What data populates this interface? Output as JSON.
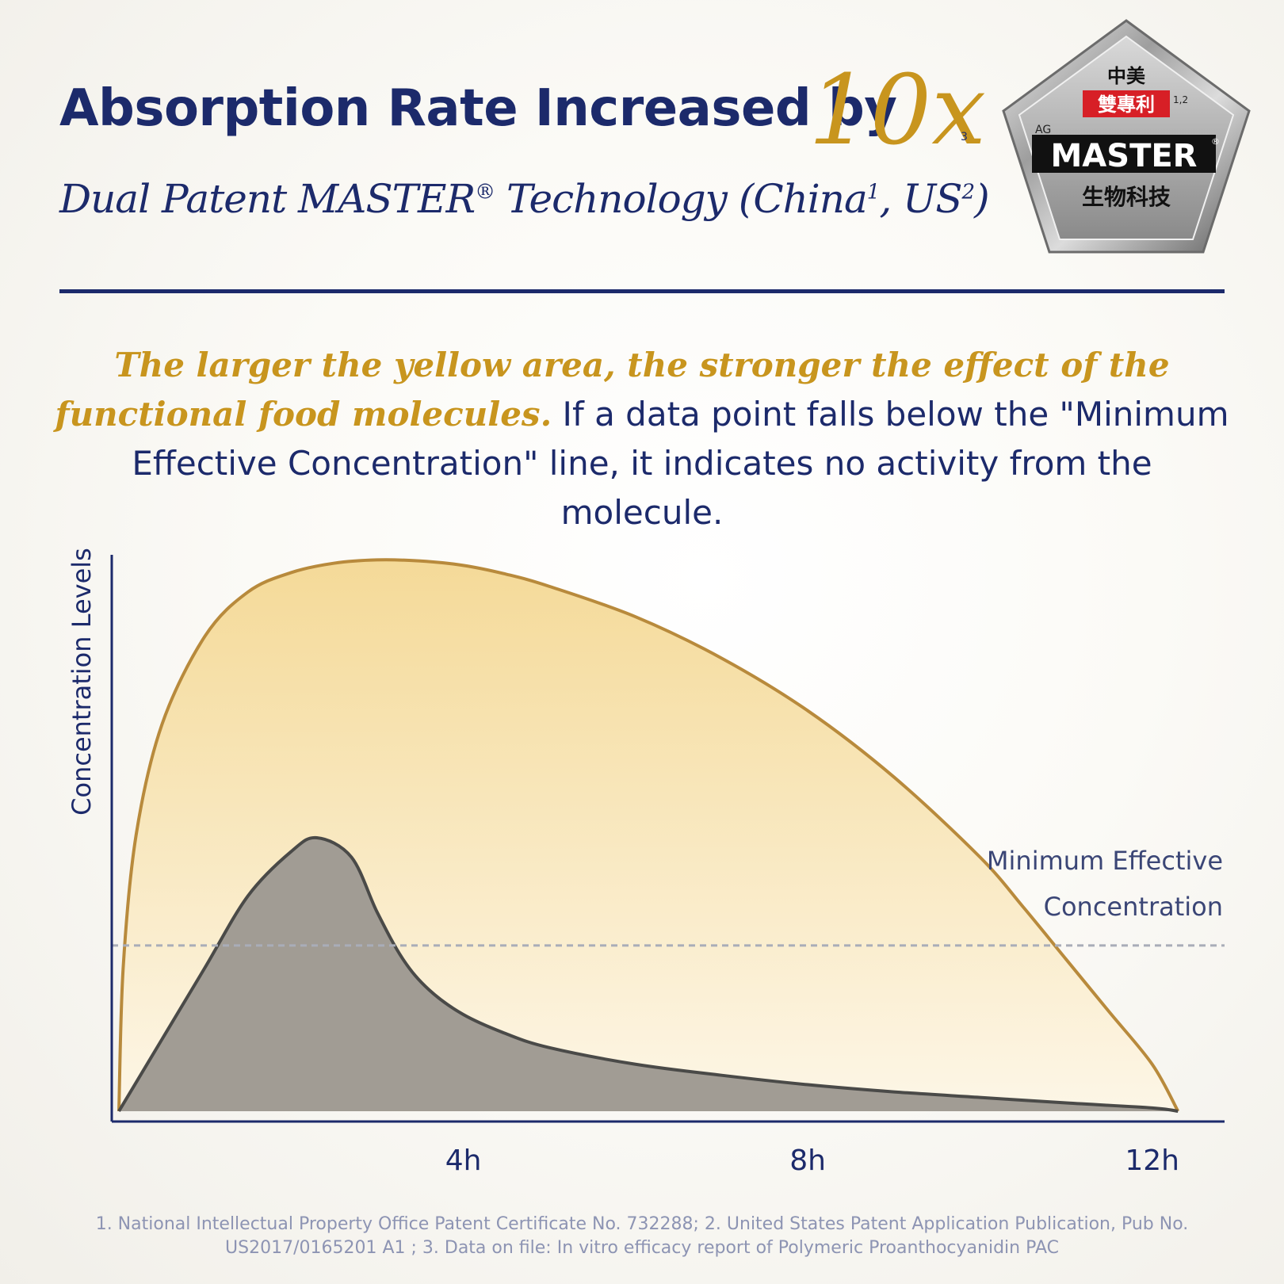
{
  "header": {
    "title": "Absorption Rate Increased by",
    "multiplier": "10x",
    "multiplier_ref": "3",
    "subtitle_prefix": "Dual Patent MASTER",
    "subtitle_reg": "®",
    "subtitle_mid": " Technology (China",
    "subtitle_sup1": "1",
    "subtitle_sep": ", US",
    "subtitle_sup2": "2",
    "subtitle_end": ")"
  },
  "badge": {
    "line1": "中美",
    "line2": "雙專利",
    "sup": "1,2",
    "ag": "AG",
    "brand": "MASTER",
    "reg": "®",
    "line4": "生物科技"
  },
  "description": {
    "highlight": "The larger the yellow area, the stronger the effect of the functional food molecules.",
    "rest": " If a data point falls below the \"Minimum Effective Concentration\" line, it indicates no activity from the molecule."
  },
  "chart_data": {
    "type": "area",
    "ylabel": "Concentration Levels",
    "xlabel": "",
    "x_ticks": [
      {
        "x": 4,
        "label": "4h"
      },
      {
        "x": 8,
        "label": "8h"
      },
      {
        "x": 12,
        "label": "12h"
      }
    ],
    "xlim": [
      0,
      12.5
    ],
    "ylim": [
      0,
      10
    ],
    "threshold": {
      "value": 3,
      "label_line1": "Minimum Effective",
      "label_line2": "Concentration"
    },
    "series": [
      {
        "color": "#b88a3c",
        "fill": "#f6e3b4",
        "x": [
          0.0,
          0.05,
          0.2,
          0.5,
          1.0,
          1.5,
          2.0,
          2.5,
          3.0,
          3.5,
          4.0,
          4.5,
          5.0,
          6.0,
          7.0,
          8.0,
          9.0,
          10.0,
          10.5,
          11.0,
          11.5,
          12.0,
          12.3
        ],
        "y": [
          0.0,
          2.6,
          5.0,
          7.0,
          8.6,
          9.4,
          9.75,
          9.92,
          9.98,
          9.96,
          9.88,
          9.72,
          9.5,
          8.95,
          8.2,
          7.25,
          6.05,
          4.6,
          3.7,
          2.75,
          1.8,
          0.85,
          0.0
        ]
      },
      {
        "color": "#4a4a48",
        "fill": "#a19c94",
        "x": [
          0.0,
          0.5,
          1.0,
          1.5,
          2.0,
          2.3,
          2.7,
          3.0,
          3.3,
          3.6,
          4.0,
          4.5,
          5.0,
          6.0,
          7.0,
          8.0,
          9.0,
          10.0,
          11.0,
          12.0,
          12.3
        ],
        "y": [
          0.0,
          1.3,
          2.6,
          3.9,
          4.7,
          4.95,
          4.6,
          3.6,
          2.75,
          2.2,
          1.75,
          1.4,
          1.15,
          0.85,
          0.65,
          0.48,
          0.35,
          0.25,
          0.15,
          0.06,
          0.0
        ]
      }
    ]
  },
  "footnotes": {
    "line1": "1. National Intellectual Property Office Patent Certificate No. 732288;   2. United States Patent Application Publication, Pub No.",
    "line2": "US2017/0165201 A1 ;   3. Data on file: In vitro efficacy report of Polymeric Proanthocyanidin PAC"
  },
  "colors": {
    "navy": "#1c2a6b",
    "gold": "#c8951e",
    "badge_red": "#d71f26"
  }
}
